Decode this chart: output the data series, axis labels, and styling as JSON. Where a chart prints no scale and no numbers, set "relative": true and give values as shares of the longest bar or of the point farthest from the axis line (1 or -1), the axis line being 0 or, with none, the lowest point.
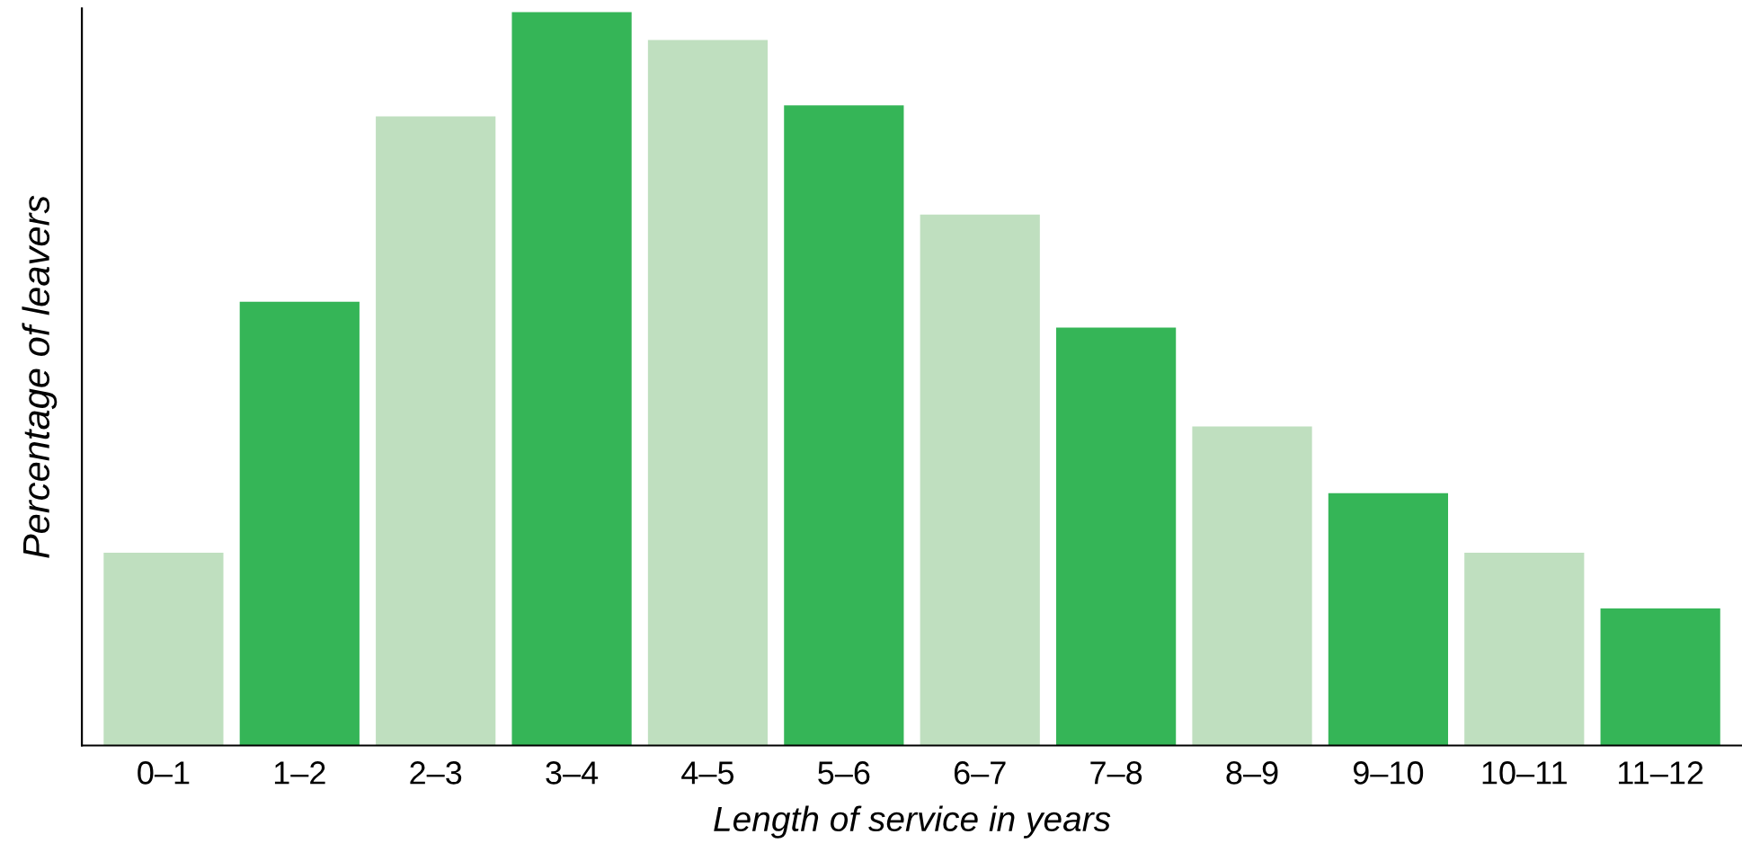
{
  "chart_data": {
    "type": "bar",
    "relative": true,
    "xlabel": "Length of service in years",
    "ylabel": "Percentage of leavers",
    "categories": [
      "0–1",
      "1–2",
      "2–3",
      "3–4",
      "4–5",
      "5–6",
      "6–7",
      "7–8",
      "8–9",
      "9–10",
      "10–11",
      "11–12"
    ],
    "values": [
      0.263,
      0.605,
      0.858,
      1,
      0.962,
      0.873,
      0.724,
      0.57,
      0.435,
      0.344,
      0.263,
      0.187
    ],
    "colors": [
      "#bfdfbf",
      "#35b557",
      "#bfdfbf",
      "#35b557",
      "#bfdfbf",
      "#35b557",
      "#bfdfbf",
      "#35b557",
      "#bfdfbf",
      "#35b557",
      "#bfdfbf",
      "#35b557"
    ],
    "grid": false,
    "legend": false
  }
}
